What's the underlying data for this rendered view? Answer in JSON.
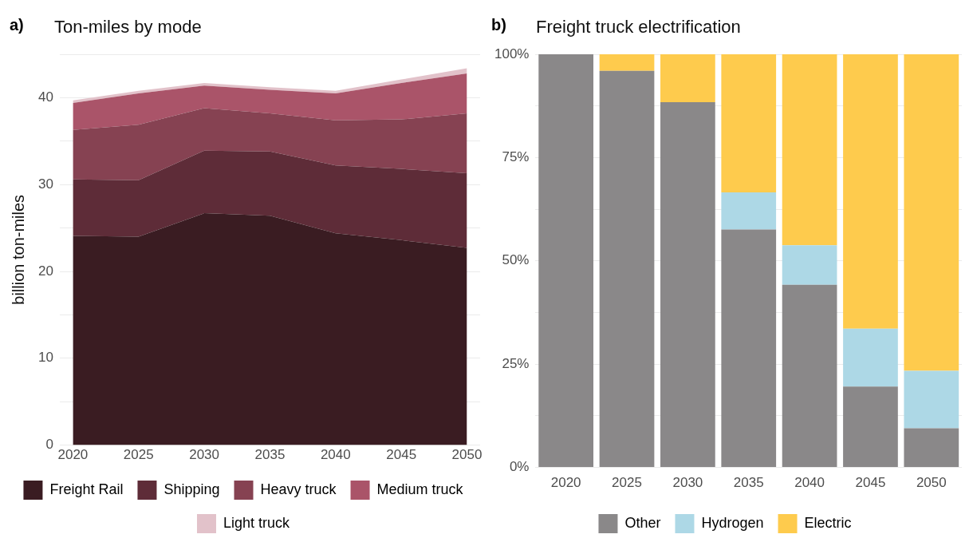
{
  "chart_data": [
    {
      "type": "area",
      "title": "Ton-miles by mode",
      "annotations": [
        "a)"
      ],
      "ylabel": "billion ton-miles",
      "stacked": true,
      "x": [
        2020,
        2025,
        2030,
        2035,
        2040,
        2045,
        2050
      ],
      "xlim": [
        2019,
        2051
      ],
      "xticks": [
        2020,
        2025,
        2030,
        2035,
        2040,
        2045,
        2050
      ],
      "ylim": [
        0,
        45
      ],
      "yticks": [
        0,
        {
          "value": 5,
          "label": null
        },
        10,
        {
          "value": 15,
          "label": null
        },
        20,
        {
          "value": 25,
          "label": null
        },
        30,
        {
          "value": 35,
          "label": null
        },
        40,
        {
          "value": 45,
          "label": null
        }
      ],
      "grid": "y",
      "legend": "bottom",
      "series": [
        {
          "name": "Freight Rail",
          "color": "#3a1c22",
          "values": [
            24.1,
            24.0,
            26.7,
            26.4,
            24.4,
            23.6,
            22.7
          ]
        },
        {
          "name": "Shipping",
          "color": "#5e2c38",
          "values": [
            6.5,
            6.5,
            7.2,
            7.4,
            7.8,
            8.2,
            8.6
          ]
        },
        {
          "name": "Heavy truck",
          "color": "#864252",
          "values": [
            5.7,
            6.4,
            4.9,
            4.4,
            5.2,
            5.7,
            6.9
          ]
        },
        {
          "name": "Medium truck",
          "color": "#aa5469",
          "values": [
            3.1,
            3.6,
            2.6,
            2.7,
            3.1,
            4.2,
            4.6
          ]
        },
        {
          "name": "Light truck",
          "color": "#e2c2ca",
          "values": [
            0.3,
            0.3,
            0.3,
            0.3,
            0.3,
            0.4,
            0.6
          ]
        }
      ]
    },
    {
      "type": "bar",
      "title": "Freight truck electrification",
      "annotations": [
        "b)"
      ],
      "stacked": true,
      "categories": [
        "2020",
        "2025",
        "2030",
        "2035",
        "2040",
        "2045",
        "2050"
      ],
      "ylim": [
        0,
        100
      ],
      "yticks": [
        {
          "value": 0,
          "label": "0%"
        },
        {
          "value": 12.5,
          "label": null
        },
        {
          "value": 25,
          "label": "25%"
        },
        {
          "value": 37.5,
          "label": null
        },
        {
          "value": 50,
          "label": "50%"
        },
        {
          "value": 62.5,
          "label": null
        },
        {
          "value": 75,
          "label": "75%"
        },
        {
          "value": 87.5,
          "label": null
        },
        {
          "value": 100,
          "label": "100%"
        }
      ],
      "grid": "y",
      "legend": "bottom",
      "series": [
        {
          "name": "Other",
          "color": "#8a8889",
          "values": [
            100,
            96.0,
            88.4,
            57.6,
            44.2,
            19.6,
            9.5
          ]
        },
        {
          "name": "Hydrogen",
          "color": "#add8e6",
          "values": [
            0,
            0,
            0,
            9.0,
            9.6,
            14.0,
            13.9
          ]
        },
        {
          "name": "Electric",
          "color": "#fecb4d",
          "values": [
            0,
            4.0,
            11.6,
            33.4,
            46.2,
            66.4,
            76.6
          ]
        }
      ]
    }
  ]
}
